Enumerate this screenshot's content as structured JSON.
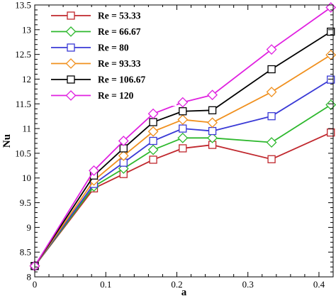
{
  "chart_data": {
    "type": "line",
    "xlabel": "a",
    "ylabel": "Nu",
    "xlim": [
      0,
      0.42
    ],
    "ylim": [
      8,
      13.5
    ],
    "xticks": [
      0,
      0.1,
      0.2,
      0.3,
      0.4
    ],
    "xtick_labels": [
      "0",
      "0.1",
      "0.2",
      "0.3",
      "0.4"
    ],
    "yticks": [
      8,
      8.5,
      9,
      9.5,
      10,
      10.5,
      11,
      11.5,
      12,
      12.5,
      13,
      13.5
    ],
    "ytick_labels": [
      "8",
      "8.5",
      "9",
      "9.5",
      "10",
      "10.5",
      "11",
      "11.5",
      "12",
      "12.5",
      "13",
      "13.5"
    ],
    "grid": false,
    "legend_position": "top-left",
    "x": [
      0,
      0.0833,
      0.125,
      0.1667,
      0.2083,
      0.25,
      0.3333,
      0.4167
    ],
    "series": [
      {
        "name": "Re =  53.33",
        "color": "#c0272d",
        "marker": "square",
        "values": [
          8.22,
          9.79,
          10.08,
          10.37,
          10.6,
          10.67,
          10.38,
          10.92
        ]
      },
      {
        "name": "Re =  66.67",
        "color": "#2db82d",
        "marker": "diamond",
        "values": [
          8.22,
          9.83,
          10.19,
          10.57,
          10.81,
          10.81,
          10.72,
          11.48
        ]
      },
      {
        "name": "Re =  80",
        "color": "#3a3ad6",
        "marker": "square",
        "values": [
          8.22,
          9.88,
          10.31,
          10.75,
          11.0,
          10.95,
          11.25,
          11.99
        ]
      },
      {
        "name": "Re =  93.33",
        "color": "#f0901e",
        "marker": "diamond",
        "values": [
          8.22,
          9.95,
          10.45,
          10.94,
          11.18,
          11.12,
          11.74,
          12.49
        ]
      },
      {
        "name": "Re =  106.67",
        "color": "#000000",
        "marker": "square",
        "values": [
          8.22,
          10.05,
          10.6,
          11.13,
          11.35,
          11.37,
          12.2,
          12.96
        ]
      },
      {
        "name": "Re =  120",
        "color": "#e020e0",
        "marker": "diamond",
        "values": [
          8.22,
          10.15,
          10.75,
          11.3,
          11.53,
          11.68,
          12.6,
          13.45
        ]
      }
    ]
  }
}
